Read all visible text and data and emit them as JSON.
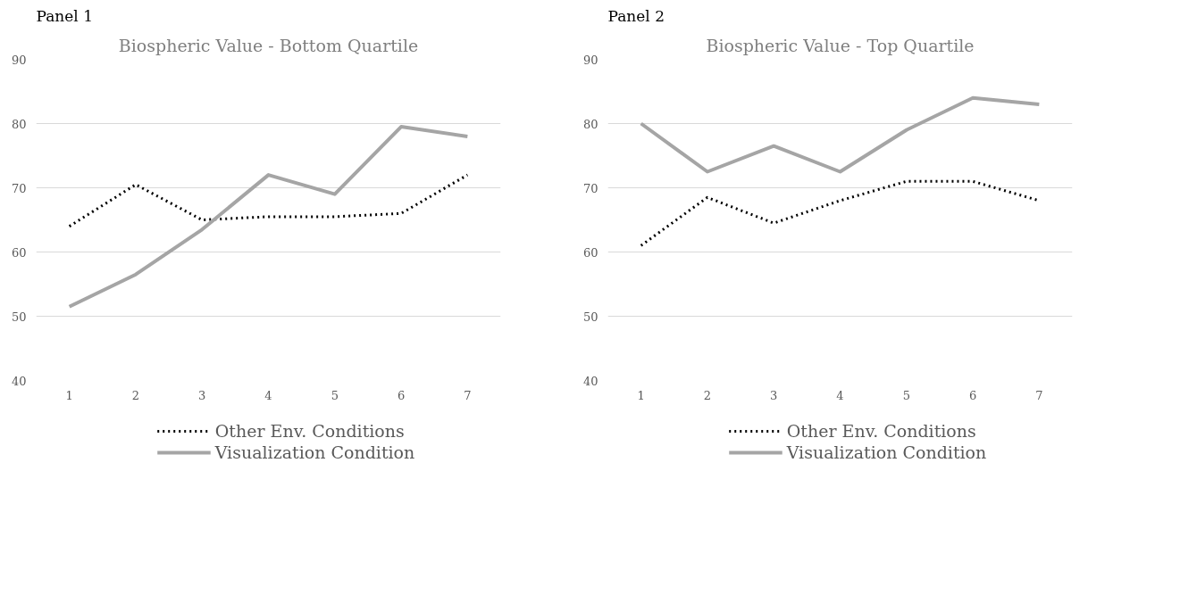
{
  "chart_data": [
    {
      "type": "line",
      "title": "Biospheric Value - Bottom Quartile",
      "annotations": [
        "Panel 1"
      ],
      "categories": [
        "1",
        "2",
        "3",
        "4",
        "5",
        "6",
        "7"
      ],
      "ylim": [
        40,
        90
      ],
      "yticks": [
        40,
        50,
        60,
        70,
        80,
        90
      ],
      "grid": "y",
      "legend": "bottom",
      "series": [
        {
          "name": "Other Env. Conditions",
          "color": "#000000",
          "line_style": "dotted",
          "values": [
            64,
            70.5,
            65,
            65.5,
            65.5,
            66,
            72
          ]
        },
        {
          "name": "Visualization Condition",
          "color": "#a5a5a5",
          "line_style": "solid",
          "values": [
            51.5,
            56.5,
            63.5,
            72,
            69,
            79.5,
            78
          ]
        }
      ]
    },
    {
      "type": "line",
      "title": "Biospheric Value - Top Quartile",
      "annotations": [
        "Panel 2"
      ],
      "categories": [
        "1",
        "2",
        "3",
        "4",
        "5",
        "6",
        "7"
      ],
      "ylim": [
        40,
        90
      ],
      "yticks": [
        40,
        50,
        60,
        70,
        80,
        90
      ],
      "grid": "y",
      "legend": "bottom",
      "series": [
        {
          "name": "Other Env. Conditions",
          "color": "#000000",
          "line_style": "dotted",
          "values": [
            61,
            68.5,
            64.5,
            68,
            71,
            71,
            68
          ]
        },
        {
          "name": "Visualization Condition",
          "color": "#a5a5a5",
          "line_style": "solid",
          "values": [
            80,
            72.5,
            76.5,
            72.5,
            79,
            84,
            83
          ]
        }
      ]
    }
  ]
}
